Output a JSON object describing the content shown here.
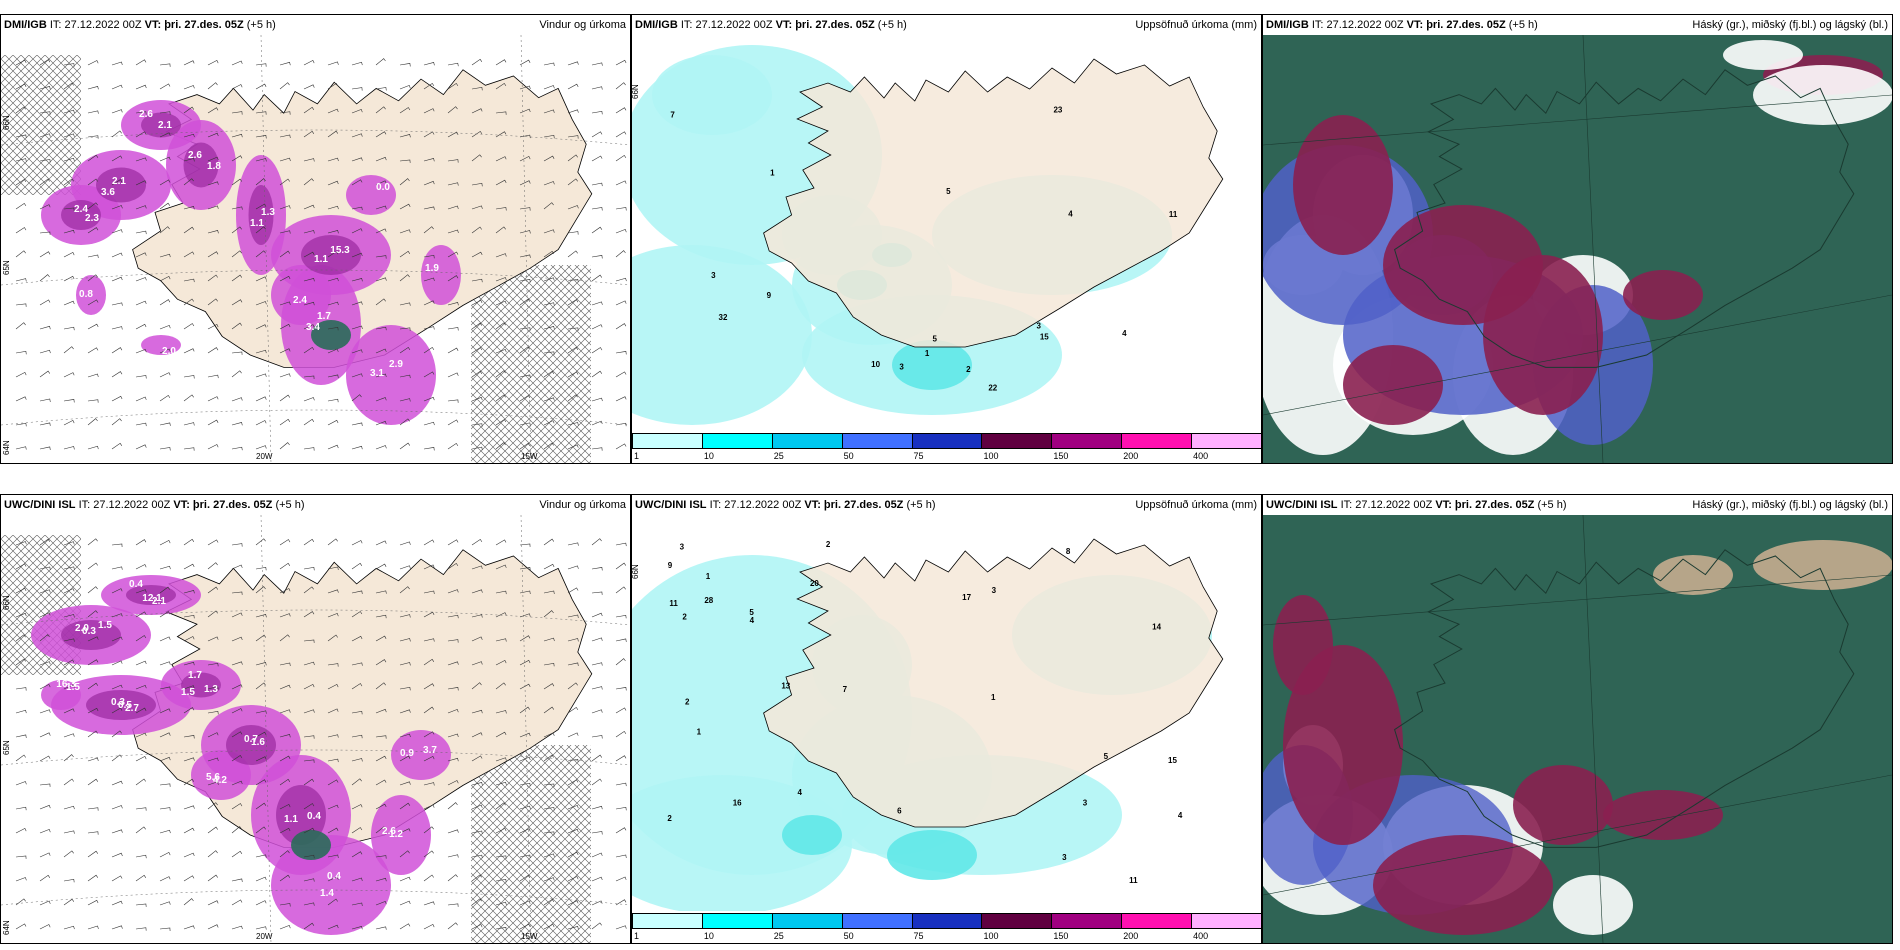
{
  "panels": [
    {
      "model": "DMI/IGB",
      "it": "IT: 27.12.2022 00Z",
      "vt_label": "VT:",
      "vt_value": "þri. 27.des. 05Z",
      "lead": "(+5 h)",
      "title": "Vindur og úrkoma",
      "type": "wind",
      "labels": [
        "2.6",
        "2.1",
        "2.3",
        "2.6",
        "1.3",
        "1.1",
        "1.7",
        "3.1",
        "2.4",
        "0.0",
        "0.8",
        "2.0",
        "1.9",
        "2.1",
        "3.6",
        "2.4",
        "1.8",
        "1.1",
        "15.3",
        "3.4",
        "2.9"
      ],
      "axes": {
        "lat1": "66N",
        "lat2": "65N",
        "lat3": "64N",
        "lon1": "20W",
        "lon2": "15W"
      }
    },
    {
      "model": "DMI/IGB",
      "it": "IT: 27.12.2022 00Z",
      "vt_label": "VT:",
      "vt_value": "þri. 27.des. 05Z",
      "lead": "(+5 h)",
      "title": "Uppsöfnuð úrkoma (mm)",
      "type": "precip",
      "labels": [
        "10",
        "5",
        "5",
        "7",
        "11",
        "32",
        "1",
        "3",
        "4",
        "1",
        "9",
        "4",
        "3",
        "22",
        "23",
        "2",
        "3",
        "15"
      ],
      "axes": {
        "lat1": "66N"
      }
    },
    {
      "model": "DMI/IGB",
      "it": "IT: 27.12.2022 00Z",
      "vt_label": "VT:",
      "vt_value": "þri. 27.des. 05Z",
      "lead": "(+5 h)",
      "title": "Háský (gr.), miðský (fj.bl.) og lágský (bl.)",
      "type": "cloud"
    },
    {
      "model": "UWC/DINI ISL",
      "it": "IT: 27.12.2022 00Z",
      "vt_label": "VT:",
      "vt_value": "þri. 27.des. 05Z",
      "lead": "(+5 h)",
      "title": "Vindur og úrkoma",
      "type": "wind",
      "labels": [
        "0.4",
        "0.3",
        "2.7",
        "1.7",
        "1.6",
        "1.1",
        "0.4",
        "0.9",
        "4.2",
        "1.5",
        "1.2",
        "2.1",
        "2.0",
        "0.5",
        "1.5",
        "0.7",
        "0.4",
        "1.4",
        "3.7",
        "5.6",
        "16.3",
        "2.6",
        "12.1",
        "1.5",
        "0.3",
        "1.3"
      ],
      "axes": {
        "lat1": "66N",
        "lat2": "65N",
        "lat3": "64N",
        "lon1": "20W",
        "lon2": "15W"
      }
    },
    {
      "model": "UWC/DINI ISL",
      "it": "IT: 27.12.2022 00Z",
      "vt_label": "VT:",
      "vt_value": "þri. 27.des. 05Z",
      "lead": "(+5 h)",
      "title": "Uppsöfnuð úrkoma (mm)",
      "type": "precip",
      "labels": [
        "1",
        "2",
        "1",
        "2",
        "3",
        "3",
        "4",
        "4",
        "2",
        "5",
        "6",
        "3",
        "1",
        "7",
        "5",
        "20",
        "9",
        "3",
        "4",
        "8",
        "11",
        "2",
        "15",
        "17",
        "13",
        "14",
        "16",
        "28",
        "11"
      ],
      "axes": {
        "lat1": "66N"
      }
    },
    {
      "model": "UWC/DINI ISL",
      "it": "IT: 27.12.2022 00Z",
      "vt_label": "VT:",
      "vt_value": "þri. 27.des. 05Z",
      "lead": "(+5 h)",
      "title": "Háský (gr.), miðský (fj.bl.) og lágský (bl.)",
      "type": "cloud"
    }
  ],
  "colorbar": {
    "ticks": [
      "1",
      "10",
      "25",
      "50",
      "75",
      "100",
      "150",
      "200",
      "400"
    ],
    "colors": [
      "#c8ffff",
      "#00ffff",
      "#00c8f0",
      "#4070ff",
      "#1830c0",
      "#600040",
      "#a00080",
      "#ff10b0",
      "#ffb0ff"
    ]
  },
  "colors": {
    "land": "#f5e8d8",
    "precip_light": "#b0f5f5",
    "precip_mid": "#60e8e8",
    "wind_precip": "#d050d8",
    "cloud_high": "#2f6455",
    "cloud_mid": "#8a2050",
    "cloud_low": "#5060c8"
  }
}
